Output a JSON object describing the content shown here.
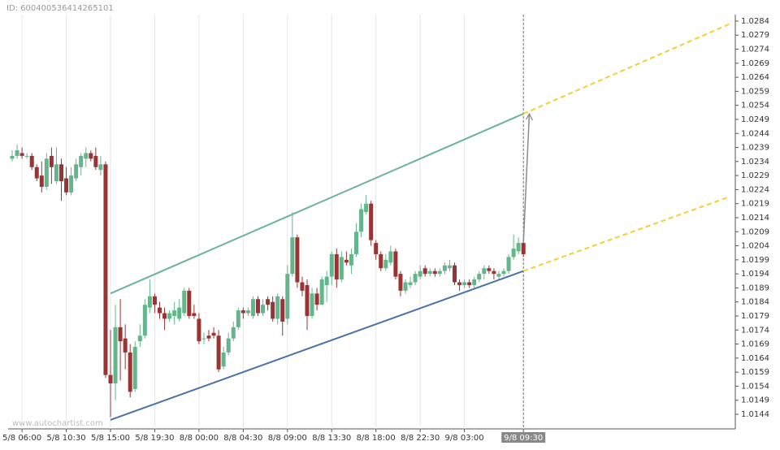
{
  "chart_data": {
    "type": "candlestick",
    "id_label": "ID: 600400536414265101",
    "watermark": "www.autochartist.com",
    "categories": [
      null,
      null,
      "5/8 06:00",
      null,
      null,
      null,
      null,
      null,
      null,
      null,
      null,
      "5/8 10:30",
      null,
      null,
      null,
      null,
      null,
      null,
      null,
      null,
      "5/8 15:00",
      null,
      null,
      null,
      null,
      null,
      null,
      null,
      null,
      "5/8 19:30",
      null,
      null,
      null,
      null,
      null,
      null,
      null,
      null,
      "8/8 00:00",
      null,
      null,
      null,
      null,
      null,
      null,
      null,
      null,
      "8/8 04:30",
      null,
      null,
      null,
      null,
      null,
      null,
      null,
      null,
      "8/8 09:00",
      null,
      null,
      null,
      null,
      null,
      null,
      null,
      null,
      "8/8 13:30",
      null,
      null,
      null,
      null,
      null,
      null,
      null,
      null,
      "8/8 18:00",
      null,
      null,
      null,
      null,
      null,
      null,
      null,
      null,
      "8/8 22:30",
      null,
      null,
      null,
      null,
      null,
      null,
      null,
      null,
      "9/8 03:00",
      null,
      null,
      null,
      null,
      null,
      null,
      null,
      null,
      null,
      null,
      null,
      "9/8 09:30"
    ],
    "open": [
      1.0235,
      1.0236,
      1.0237,
      1.0236,
      1.0236,
      1.0232,
      1.0229,
      1.0225,
      1.0236,
      1.0227,
      1.0233,
      1.0228,
      1.0223,
      1.0228,
      1.0232,
      1.0235,
      1.0237,
      1.0236,
      1.0231,
      1.0233,
      1.0158,
      1.0155,
      1.0175,
      1.0171,
      1.0166,
      1.0153,
      1.017,
      1.0172,
      1.0182,
      1.0186,
      1.0182,
      1.018,
      1.0178,
      1.0179,
      1.0178,
      1.018,
      1.0188,
      1.018,
      1.0178,
      1.0171,
      1.0172,
      1.0173,
      1.0172,
      1.0161,
      1.0166,
      1.0171,
      1.0175,
      1.0181,
      1.018,
      1.0179,
      1.0185,
      1.018,
      1.0185,
      1.0184,
      1.0178,
      1.0185,
      1.0178,
      1.0194,
      1.0207,
      1.0191,
      1.019,
      1.0179,
      1.0187,
      1.0183,
      1.019,
      1.0193,
      1.0201,
      1.0192,
      1.0199,
      1.0197,
      1.0201,
      1.0209,
      1.0216,
      1.0219,
      1.0205,
      1.0201,
      1.0196,
      1.0198,
      1.0202,
      1.0194,
      1.0188,
      1.019,
      1.0191,
      1.0193,
      1.0196,
      1.0194,
      1.0195,
      1.0194,
      1.0195,
      1.0196,
      1.0197,
      1.0191,
      1.019,
      1.0191,
      1.019,
      1.0192,
      1.0194,
      1.0196,
      1.0195,
      1.0193,
      1.0194,
      1.0195,
      1.02,
      1.0202,
      1.0205
    ],
    "high": [
      1.0238,
      1.024,
      1.0239,
      1.0237,
      1.0237,
      1.0233,
      1.0234,
      1.0237,
      1.0239,
      1.0239,
      1.0235,
      1.0232,
      1.0232,
      1.0235,
      1.0237,
      1.0239,
      1.0238,
      1.0239,
      1.0236,
      1.0234,
      1.0174,
      1.0183,
      1.0185,
      1.0176,
      1.0169,
      1.017,
      1.0176,
      1.0185,
      1.0192,
      1.0187,
      1.0184,
      1.0182,
      1.0181,
      1.0184,
      1.0185,
      1.0189,
      1.0189,
      1.0183,
      1.018,
      1.0173,
      1.0174,
      1.0175,
      1.0174,
      1.0168,
      1.0173,
      1.0177,
      1.0182,
      1.0182,
      1.0182,
      1.0186,
      1.0186,
      1.0185,
      1.0186,
      1.0186,
      1.0187,
      1.0186,
      1.0197,
      1.0216,
      1.0208,
      1.0193,
      1.0192,
      1.0189,
      1.0189,
      1.0193,
      1.0195,
      1.0202,
      1.0203,
      1.0202,
      1.0202,
      1.0203,
      1.0212,
      1.0219,
      1.0222,
      1.022,
      1.0206,
      1.0202,
      1.0201,
      1.0204,
      1.0203,
      1.0195,
      1.0192,
      1.0193,
      1.0195,
      1.0197,
      1.0197,
      1.0196,
      1.0196,
      1.0196,
      1.0198,
      1.0199,
      1.0198,
      1.0192,
      1.0192,
      1.0192,
      1.0193,
      1.0195,
      1.0197,
      1.0197,
      1.0196,
      1.0195,
      1.0196,
      1.0201,
      1.0208,
      1.0207,
      1.0206
    ],
    "low": [
      1.0234,
      1.0235,
      1.0235,
      1.0235,
      1.0231,
      1.0227,
      1.0223,
      1.0224,
      1.0226,
      1.0226,
      1.022,
      1.0222,
      1.0222,
      1.0227,
      1.0229,
      1.0232,
      1.0234,
      1.0231,
      1.0229,
      1.0157,
      1.0143,
      1.0149,
      1.0156,
      1.016,
      1.015,
      1.0152,
      1.0168,
      1.0171,
      1.018,
      1.018,
      1.0178,
      1.0174,
      1.0177,
      1.0176,
      1.0177,
      1.0179,
      1.0178,
      1.0178,
      1.0169,
      1.0169,
      1.017,
      1.0171,
      1.0159,
      1.016,
      1.0165,
      1.017,
      1.0174,
      1.0178,
      1.0179,
      1.0178,
      1.0179,
      1.0179,
      1.0181,
      1.0177,
      1.0176,
      1.0172,
      1.0176,
      1.0193,
      1.0189,
      1.0186,
      1.0174,
      1.0178,
      1.0181,
      1.0183,
      1.0184,
      1.019,
      1.0189,
      1.0191,
      1.0197,
      1.0194,
      1.02,
      1.0207,
      1.0215,
      1.0204,
      1.0199,
      1.0195,
      1.0195,
      1.0197,
      1.0192,
      1.0186,
      1.0187,
      1.0189,
      1.019,
      1.0192,
      1.0193,
      1.0193,
      1.0193,
      1.0193,
      1.0194,
      1.0195,
      1.019,
      1.0188,
      1.0189,
      1.0189,
      1.0189,
      1.0191,
      1.0192,
      1.0194,
      1.0192,
      1.0192,
      1.0193,
      1.0194,
      1.0199,
      1.0201,
      1.02
    ],
    "close": [
      1.0236,
      1.0238,
      1.0236,
      1.0236,
      1.0232,
      1.0228,
      1.0225,
      1.0235,
      1.0232,
      1.0233,
      1.0227,
      1.0223,
      1.0229,
      1.0233,
      1.0236,
      1.0237,
      1.0235,
      1.0232,
      1.0233,
      1.0158,
      1.0155,
      1.0175,
      1.017,
      1.0166,
      1.0152,
      1.0168,
      1.0172,
      1.0183,
      1.0186,
      1.0183,
      1.018,
      1.0178,
      1.018,
      1.0181,
      1.0182,
      1.0188,
      1.0179,
      1.0179,
      1.017,
      1.0171,
      1.0171,
      1.0172,
      1.016,
      1.0166,
      1.0171,
      1.0175,
      1.0181,
      1.018,
      1.0181,
      1.0185,
      1.018,
      1.0183,
      1.0183,
      1.0178,
      1.0186,
      1.0177,
      1.0194,
      1.0207,
      1.0191,
      1.0188,
      1.0179,
      1.0187,
      1.0183,
      1.0192,
      1.0193,
      1.0201,
      1.0192,
      1.02,
      1.0198,
      1.0201,
      1.0209,
      1.0217,
      1.0219,
      1.0206,
      1.0201,
      1.0196,
      1.0199,
      1.0202,
      1.0193,
      1.0188,
      1.0191,
      1.0191,
      1.0194,
      1.0195,
      1.0194,
      1.0195,
      1.0194,
      1.0195,
      1.0197,
      1.0197,
      1.0191,
      1.019,
      1.0191,
      1.019,
      1.0192,
      1.0194,
      1.0196,
      1.0195,
      1.0194,
      1.0194,
      1.0195,
      1.02,
      1.0203,
      1.0205,
      1.0201
    ],
    "up_color": "#63b68b",
    "down_color": "#9a3434",
    "ylim": [
      1.01388,
      1.02863
    ],
    "yticks": [
      1.0144,
      1.0149,
      1.0154,
      1.0159,
      1.0164,
      1.0169,
      1.0174,
      1.0179,
      1.0184,
      1.0189,
      1.0194,
      1.0199,
      1.0204,
      1.0209,
      1.0214,
      1.0219,
      1.0224,
      1.0229,
      1.0234,
      1.0239,
      1.0244,
      1.0249,
      1.0254,
      1.0259,
      1.0264,
      1.0269,
      1.0274,
      1.0279,
      1.0284
    ],
    "lines": [
      {
        "color": "#6db39b",
        "dashed": false,
        "x": [
          20,
          104
        ],
        "y": [
          1.0187,
          1.0251
        ]
      },
      {
        "color": "#4a72a6",
        "dashed": false,
        "x": [
          20,
          104
        ],
        "y": [
          1.0142,
          1.0195
        ]
      },
      {
        "color": "#f2d031",
        "dashed": true,
        "x": [
          104,
          146
        ],
        "y": [
          1.0251,
          1.0283
        ]
      },
      {
        "color": "#f2d031",
        "dashed": true,
        "x": [
          104,
          146
        ],
        "y": [
          1.0195,
          1.02215
        ]
      }
    ],
    "arrow": {
      "color": "#8a8a8a",
      "x": [
        104,
        105.2
      ],
      "y": [
        1.0205,
        1.0251
      ]
    }
  }
}
